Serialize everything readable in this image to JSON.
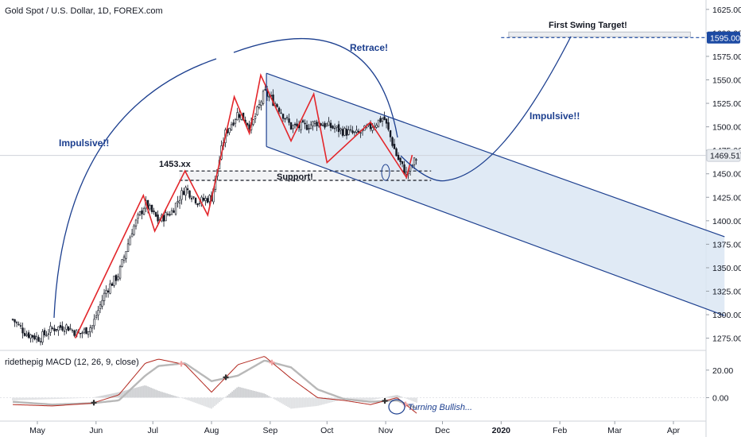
{
  "header": {
    "title": "Gold Spot / U.S. Dollar, 1D, FOREX.com"
  },
  "price_axis": {
    "ticks": [
      "1625.00",
      "1600.00",
      "1575.00",
      "1550.00",
      "1525.00",
      "1500.00",
      "1475.00",
      "1450.00",
      "1425.00",
      "1400.00",
      "1375.00",
      "1350.00",
      "1325.00",
      "1300.00",
      "1275.00"
    ]
  },
  "time_axis": {
    "labels": [
      "May",
      "Jun",
      "Jul",
      "Aug",
      "Sep",
      "Oct",
      "Nov",
      "Dec",
      "2020",
      "Feb",
      "Mar",
      "Apr"
    ]
  },
  "badges": {
    "target": "1595.00",
    "current": "1469.51"
  },
  "annotations": {
    "impulsive_1": "Impulsive!!",
    "retrace": "Retrace!",
    "impulsive_2": "Impulsive!!",
    "first_swing_target": "First Swing Target!",
    "level_1453": "1453.xx",
    "support": "Support!",
    "turning_bullish": "Turning Bullish..."
  },
  "macd": {
    "title": "ridethepig MACD (12, 26, 9, close)",
    "ticks": [
      "20.00",
      "0.00"
    ]
  },
  "colors": {
    "candle": "#131722",
    "zigzag": "#e3262b",
    "arc": "#1c3f8f",
    "channel_fill": "#dbe6f3",
    "badge_target": "#1c4aa3",
    "badge_current": "#e9ecf0",
    "macd_line": "#b2281f",
    "signal_line": "#b8b8b8"
  },
  "chart_data": {
    "type": "candlestick",
    "symbol": "Gold Spot / U.S. Dollar",
    "timeframe": "1D",
    "ylim": [
      1262,
      1635
    ],
    "price_path_close": [
      [
        "2019-04-18",
        1295
      ],
      [
        "2019-04-25",
        1280
      ],
      [
        "2019-05-02",
        1275
      ],
      [
        "2019-05-09",
        1285
      ],
      [
        "2019-05-16",
        1288
      ],
      [
        "2019-05-23",
        1279
      ],
      [
        "2019-05-30",
        1288
      ],
      [
        "2019-06-06",
        1325
      ],
      [
        "2019-06-13",
        1343
      ],
      [
        "2019-06-20",
        1390
      ],
      [
        "2019-06-27",
        1418
      ],
      [
        "2019-07-04",
        1400
      ],
      [
        "2019-07-11",
        1410
      ],
      [
        "2019-07-18",
        1435
      ],
      [
        "2019-07-25",
        1420
      ],
      [
        "2019-08-01",
        1425
      ],
      [
        "2019-08-08",
        1492
      ],
      [
        "2019-08-15",
        1515
      ],
      [
        "2019-08-22",
        1500
      ],
      [
        "2019-08-29",
        1537
      ],
      [
        "2019-09-05",
        1522
      ],
      [
        "2019-09-12",
        1500
      ],
      [
        "2019-09-19",
        1500
      ],
      [
        "2019-09-26",
        1505
      ],
      [
        "2019-10-03",
        1500
      ],
      [
        "2019-10-10",
        1495
      ],
      [
        "2019-10-17",
        1492
      ],
      [
        "2019-10-24",
        1500
      ],
      [
        "2019-10-31",
        1510
      ],
      [
        "2019-11-07",
        1468
      ],
      [
        "2019-11-12",
        1449
      ],
      [
        "2019-11-18",
        1469.51
      ]
    ],
    "zigzag_pivots": [
      [
        "2019-05-21",
        1275
      ],
      [
        "2019-06-26",
        1427
      ],
      [
        "2019-07-02",
        1389
      ],
      [
        "2019-07-18",
        1453
      ],
      [
        "2019-07-30",
        1406
      ],
      [
        "2019-08-13",
        1532
      ],
      [
        "2019-08-21",
        1493
      ],
      [
        "2019-08-27",
        1555
      ],
      [
        "2019-09-12",
        1485
      ],
      [
        "2019-09-24",
        1535
      ],
      [
        "2019-10-01",
        1462
      ],
      [
        "2019-10-24",
        1505
      ],
      [
        "2019-11-12",
        1446
      ],
      [
        "2019-11-15",
        1470
      ]
    ],
    "channel": {
      "upper": [
        [
          "2019-08-30",
          1557
        ],
        [
          "2020-04-28",
          1383
        ]
      ],
      "lower": [
        [
          "2019-08-30",
          1479
        ],
        [
          "2020-04-28",
          1299
        ]
      ]
    },
    "levels": {
      "resistance_1453": 1453,
      "support": 1443,
      "first_swing_target": 1595,
      "last_price": 1469.51
    },
    "macd": {
      "line": [
        [
          "2019-04-18",
          -5
        ],
        [
          "2019-05-09",
          -6
        ],
        [
          "2019-05-30",
          -4
        ],
        [
          "2019-06-13",
          2
        ],
        [
          "2019-06-27",
          25
        ],
        [
          "2019-07-04",
          28
        ],
        [
          "2019-07-18",
          24
        ],
        [
          "2019-08-01",
          4
        ],
        [
          "2019-08-15",
          24
        ],
        [
          "2019-08-29",
          30
        ],
        [
          "2019-09-12",
          14
        ],
        [
          "2019-09-26",
          0
        ],
        [
          "2019-10-10",
          -2
        ],
        [
          "2019-10-24",
          -5
        ],
        [
          "2019-11-07",
          0
        ],
        [
          "2019-11-18",
          -12
        ]
      ],
      "signal": [
        [
          "2019-04-18",
          -3
        ],
        [
          "2019-05-09",
          -5
        ],
        [
          "2019-05-30",
          -4
        ],
        [
          "2019-06-13",
          -2
        ],
        [
          "2019-06-27",
          16
        ],
        [
          "2019-07-04",
          23
        ],
        [
          "2019-07-18",
          25
        ],
        [
          "2019-08-01",
          12
        ],
        [
          "2019-08-15",
          16
        ],
        [
          "2019-08-29",
          27
        ],
        [
          "2019-09-12",
          22
        ],
        [
          "2019-09-26",
          6
        ],
        [
          "2019-10-10",
          -1
        ],
        [
          "2019-10-24",
          -3
        ],
        [
          "2019-11-07",
          -2
        ],
        [
          "2019-11-18",
          -8
        ]
      ]
    }
  }
}
